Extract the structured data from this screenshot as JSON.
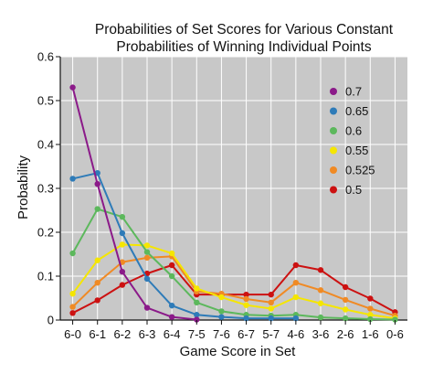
{
  "chart_data": {
    "type": "line",
    "title_line1": "Probabilities of Set Scores for Various Constant",
    "title_line2": "Probabilities of Winning Individual Points",
    "xlabel": "Game Score in Set",
    "ylabel": "Probability",
    "ylim": [
      0,
      0.6
    ],
    "yticks": [
      {
        "value": 0,
        "label": "0"
      },
      {
        "value": 0.1,
        "label": "0.1"
      },
      {
        "value": 0.2,
        "label": "0.2"
      },
      {
        "value": 0.3,
        "label": "0.3"
      },
      {
        "value": 0.4,
        "label": "0.4"
      },
      {
        "value": 0.5,
        "label": "0.5"
      },
      {
        "value": 0.6,
        "label": "0.6"
      }
    ],
    "grid": true,
    "background_color": "#c8c8c8",
    "legend_position": "top-right",
    "categories": [
      "6-0",
      "6-1",
      "6-2",
      "6-3",
      "6-4",
      "7-5",
      "7-6",
      "6-7",
      "5-7",
      "4-6",
      "3-6",
      "2-6",
      "1-6",
      "0-6"
    ],
    "series": [
      {
        "name": "0.7",
        "color": "#8b1a89",
        "values": [
          0.53,
          0.31,
          0.11,
          0.028,
          0.007,
          0.001,
          null,
          null,
          null,
          null,
          null,
          null,
          null,
          null
        ]
      },
      {
        "name": "0.65",
        "color": "#2e7bb8",
        "values": [
          0.322,
          0.335,
          0.198,
          0.094,
          0.033,
          0.012,
          0.007,
          0.004,
          0.004,
          0.004,
          null,
          null,
          null,
          null
        ]
      },
      {
        "name": "0.6",
        "color": "#5cb85c",
        "values": [
          0.152,
          0.253,
          0.235,
          0.155,
          0.1,
          0.04,
          0.02,
          0.012,
          0.01,
          0.012,
          0.006,
          0.004,
          0.002,
          0.001
        ]
      },
      {
        "name": "0.55",
        "color": "#f5e600",
        "values": [
          0.06,
          0.136,
          0.172,
          0.17,
          0.152,
          0.072,
          0.052,
          0.034,
          0.026,
          0.052,
          0.038,
          0.024,
          0.012,
          0.004
        ]
      },
      {
        "name": "0.525",
        "color": "#f08a24",
        "values": [
          0.03,
          0.085,
          0.132,
          0.142,
          0.145,
          0.065,
          0.06,
          0.048,
          0.04,
          0.085,
          0.068,
          0.046,
          0.026,
          0.01
        ]
      },
      {
        "name": "0.5",
        "color": "#cc1111",
        "values": [
          0.016,
          0.045,
          0.08,
          0.106,
          0.125,
          0.058,
          0.058,
          0.058,
          0.058,
          0.125,
          0.114,
          0.075,
          0.049,
          0.018
        ]
      }
    ]
  }
}
